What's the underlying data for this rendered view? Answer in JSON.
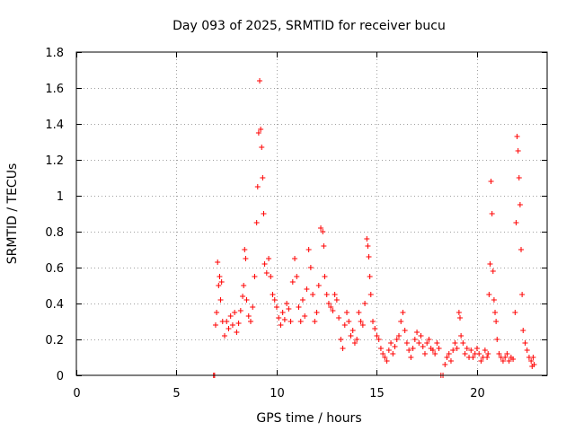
{
  "chart_data": {
    "type": "scatter",
    "title": "Day 093 of 2025, SRMTID for receiver bucu",
    "xlabel": "GPS time / hours",
    "ylabel": "SRMTID / TECUs",
    "xlim": [
      0,
      23.5
    ],
    "ylim": [
      0,
      1.8
    ],
    "x_ticks": [
      0,
      5,
      10,
      15,
      20
    ],
    "y_ticks": [
      0,
      0.2,
      0.4,
      0.6,
      0.8,
      1,
      1.2,
      1.4,
      1.6,
      1.8
    ],
    "x_tick_labels": [
      "0",
      "5",
      "10",
      "15",
      "20"
    ],
    "y_tick_labels": [
      "0",
      "0.2",
      "0.4",
      "0.6",
      "0.8",
      "1",
      "1.2",
      "1.4",
      "1.6",
      "1.8"
    ],
    "grid": true,
    "marker": "+",
    "color": "#ff0000",
    "series": [
      {
        "name": "SRMTID",
        "points": [
          [
            6.85,
            0.0
          ],
          [
            6.9,
            0.0
          ],
          [
            6.95,
            0.28
          ],
          [
            7.0,
            0.35
          ],
          [
            7.05,
            0.63
          ],
          [
            7.1,
            0.5
          ],
          [
            7.15,
            0.55
          ],
          [
            7.2,
            0.42
          ],
          [
            7.25,
            0.52
          ],
          [
            7.3,
            0.3
          ],
          [
            7.4,
            0.22
          ],
          [
            7.5,
            0.3
          ],
          [
            7.6,
            0.26
          ],
          [
            7.7,
            0.33
          ],
          [
            7.8,
            0.28
          ],
          [
            7.9,
            0.35
          ],
          [
            8.0,
            0.24
          ],
          [
            8.1,
            0.29
          ],
          [
            8.2,
            0.36
          ],
          [
            8.3,
            0.44
          ],
          [
            8.35,
            0.5
          ],
          [
            8.4,
            0.7
          ],
          [
            8.45,
            0.65
          ],
          [
            8.5,
            0.42
          ],
          [
            8.6,
            0.33
          ],
          [
            8.7,
            0.3
          ],
          [
            8.8,
            0.38
          ],
          [
            8.9,
            0.55
          ],
          [
            9.0,
            0.85
          ],
          [
            9.05,
            1.05
          ],
          [
            9.1,
            1.35
          ],
          [
            9.15,
            1.64
          ],
          [
            9.2,
            1.37
          ],
          [
            9.25,
            1.27
          ],
          [
            9.3,
            1.1
          ],
          [
            9.35,
            0.9
          ],
          [
            9.4,
            0.62
          ],
          [
            9.5,
            0.57
          ],
          [
            9.6,
            0.65
          ],
          [
            9.7,
            0.55
          ],
          [
            9.8,
            0.45
          ],
          [
            9.9,
            0.42
          ],
          [
            10.0,
            0.38
          ],
          [
            10.1,
            0.32
          ],
          [
            10.2,
            0.28
          ],
          [
            10.3,
            0.35
          ],
          [
            10.4,
            0.31
          ],
          [
            10.5,
            0.4
          ],
          [
            10.6,
            0.37
          ],
          [
            10.7,
            0.3
          ],
          [
            10.8,
            0.52
          ],
          [
            10.9,
            0.65
          ],
          [
            11.0,
            0.55
          ],
          [
            11.1,
            0.38
          ],
          [
            11.2,
            0.3
          ],
          [
            11.3,
            0.42
          ],
          [
            11.4,
            0.33
          ],
          [
            11.5,
            0.48
          ],
          [
            11.6,
            0.7
          ],
          [
            11.7,
            0.6
          ],
          [
            11.8,
            0.45
          ],
          [
            11.9,
            0.3
          ],
          [
            12.0,
            0.35
          ],
          [
            12.1,
            0.5
          ],
          [
            12.2,
            0.82
          ],
          [
            12.3,
            0.8
          ],
          [
            12.35,
            0.72
          ],
          [
            12.4,
            0.55
          ],
          [
            12.5,
            0.45
          ],
          [
            12.6,
            0.4
          ],
          [
            12.7,
            0.38
          ],
          [
            12.8,
            0.36
          ],
          [
            12.9,
            0.45
          ],
          [
            13.0,
            0.42
          ],
          [
            13.1,
            0.32
          ],
          [
            13.2,
            0.2
          ],
          [
            13.3,
            0.15
          ],
          [
            13.4,
            0.28
          ],
          [
            13.5,
            0.35
          ],
          [
            13.6,
            0.3
          ],
          [
            13.7,
            0.22
          ],
          [
            13.8,
            0.25
          ],
          [
            13.9,
            0.18
          ],
          [
            14.0,
            0.2
          ],
          [
            14.1,
            0.35
          ],
          [
            14.2,
            0.3
          ],
          [
            14.3,
            0.28
          ],
          [
            14.4,
            0.4
          ],
          [
            14.5,
            0.76
          ],
          [
            14.55,
            0.72
          ],
          [
            14.6,
            0.66
          ],
          [
            14.65,
            0.55
          ],
          [
            14.7,
            0.45
          ],
          [
            14.8,
            0.3
          ],
          [
            14.9,
            0.26
          ],
          [
            15.0,
            0.22
          ],
          [
            15.1,
            0.2
          ],
          [
            15.2,
            0.15
          ],
          [
            15.3,
            0.12
          ],
          [
            15.4,
            0.1
          ],
          [
            15.5,
            0.08
          ],
          [
            15.6,
            0.14
          ],
          [
            15.7,
            0.18
          ],
          [
            15.8,
            0.12
          ],
          [
            15.9,
            0.16
          ],
          [
            16.0,
            0.2
          ],
          [
            16.1,
            0.22
          ],
          [
            16.2,
            0.3
          ],
          [
            16.3,
            0.35
          ],
          [
            16.4,
            0.25
          ],
          [
            16.5,
            0.18
          ],
          [
            16.6,
            0.14
          ],
          [
            16.7,
            0.1
          ],
          [
            16.8,
            0.15
          ],
          [
            16.9,
            0.2
          ],
          [
            17.0,
            0.24
          ],
          [
            17.1,
            0.18
          ],
          [
            17.2,
            0.22
          ],
          [
            17.3,
            0.16
          ],
          [
            17.4,
            0.12
          ],
          [
            17.5,
            0.18
          ],
          [
            17.6,
            0.2
          ],
          [
            17.7,
            0.15
          ],
          [
            17.8,
            0.14
          ],
          [
            17.9,
            0.12
          ],
          [
            18.0,
            0.18
          ],
          [
            18.1,
            0.15
          ],
          [
            18.2,
            0.0
          ],
          [
            18.3,
            0.0
          ],
          [
            18.4,
            0.06
          ],
          [
            18.5,
            0.1
          ],
          [
            18.6,
            0.12
          ],
          [
            18.7,
            0.08
          ],
          [
            18.8,
            0.14
          ],
          [
            18.9,
            0.18
          ],
          [
            19.0,
            0.15
          ],
          [
            19.1,
            0.35
          ],
          [
            19.15,
            0.32
          ],
          [
            19.2,
            0.22
          ],
          [
            19.3,
            0.18
          ],
          [
            19.4,
            0.12
          ],
          [
            19.5,
            0.15
          ],
          [
            19.6,
            0.1
          ],
          [
            19.7,
            0.14
          ],
          [
            19.8,
            0.1
          ],
          [
            19.9,
            0.12
          ],
          [
            20.0,
            0.15
          ],
          [
            20.1,
            0.12
          ],
          [
            20.2,
            0.08
          ],
          [
            20.3,
            0.1
          ],
          [
            20.4,
            0.14
          ],
          [
            20.5,
            0.1
          ],
          [
            20.55,
            0.12
          ],
          [
            20.6,
            0.45
          ],
          [
            20.65,
            0.62
          ],
          [
            20.7,
            1.08
          ],
          [
            20.75,
            0.9
          ],
          [
            20.8,
            0.58
          ],
          [
            20.85,
            0.42
          ],
          [
            20.9,
            0.35
          ],
          [
            20.95,
            0.3
          ],
          [
            21.0,
            0.2
          ],
          [
            21.1,
            0.12
          ],
          [
            21.2,
            0.1
          ],
          [
            21.3,
            0.08
          ],
          [
            21.4,
            0.1
          ],
          [
            21.5,
            0.12
          ],
          [
            21.6,
            0.08
          ],
          [
            21.7,
            0.1
          ],
          [
            21.8,
            0.09
          ],
          [
            21.9,
            0.35
          ],
          [
            21.95,
            0.85
          ],
          [
            22.0,
            1.33
          ],
          [
            22.05,
            1.25
          ],
          [
            22.1,
            1.1
          ],
          [
            22.15,
            0.95
          ],
          [
            22.2,
            0.7
          ],
          [
            22.25,
            0.45
          ],
          [
            22.3,
            0.25
          ],
          [
            22.4,
            0.18
          ],
          [
            22.5,
            0.14
          ],
          [
            22.6,
            0.1
          ],
          [
            22.7,
            0.08
          ],
          [
            22.75,
            0.05
          ],
          [
            22.8,
            0.1
          ],
          [
            22.85,
            0.06
          ]
        ]
      }
    ]
  }
}
